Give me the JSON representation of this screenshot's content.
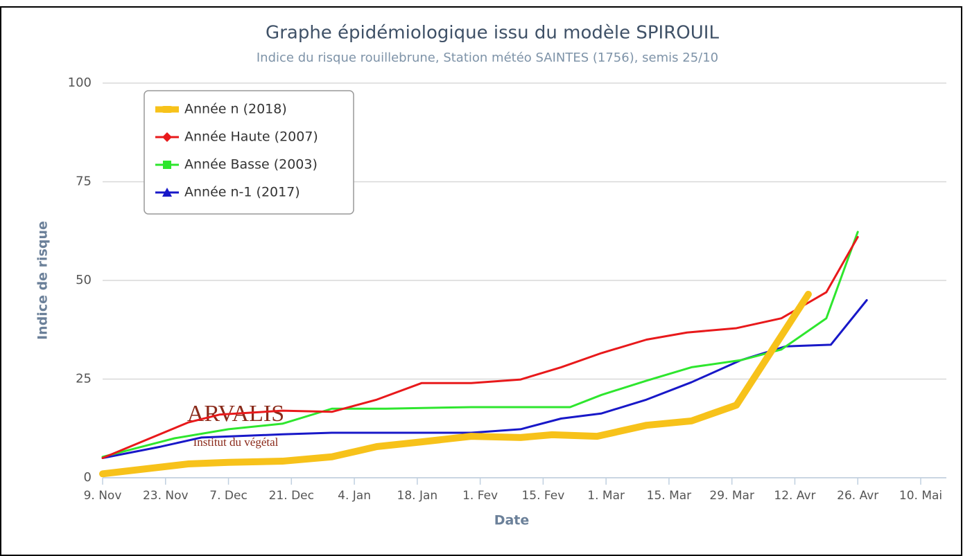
{
  "chart_data": {
    "type": "line",
    "title": "Graphe épidémiologique issu du modèle SPIROUIL",
    "subtitle": "Indice du risque rouillebrune, Station météo SAINTES (1756), semis 25/10",
    "x_label": "Date",
    "y_label": "Indice de risque",
    "logo": {
      "name": "ARVALIS",
      "tagline": "Institut du végétal"
    },
    "xlim": [
      0,
      182
    ],
    "xticks": [
      {
        "value": 0,
        "label": "9. Nov"
      },
      {
        "value": 14,
        "label": "23. Nov"
      },
      {
        "value": 28,
        "label": "7. Dec"
      },
      {
        "value": 42,
        "label": "21. Dec"
      },
      {
        "value": 56,
        "label": "4. Jan"
      },
      {
        "value": 70,
        "label": "18. Jan"
      },
      {
        "value": 84,
        "label": "1. Fev"
      },
      {
        "value": 98,
        "label": "15. Fev"
      },
      {
        "value": 112,
        "label": "1. Mar"
      },
      {
        "value": 126,
        "label": "15. Mar"
      },
      {
        "value": 140,
        "label": "29. Mar"
      },
      {
        "value": 154,
        "label": "12. Avr"
      },
      {
        "value": 168,
        "label": "26. Avr"
      },
      {
        "value": 182,
        "label": "10. Mai"
      }
    ],
    "ylim": [
      0,
      100
    ],
    "yticks": [
      0,
      25,
      50,
      75,
      100
    ],
    "grid": true,
    "legend": "top-left",
    "series": [
      {
        "name": "Année n (2018)",
        "color": "#f7c21a",
        "marker": "circle",
        "x": [
          0,
          19,
          28,
          40,
          51,
          61,
          71,
          82,
          93,
          100,
          110,
          121,
          131,
          141,
          157
        ],
        "values": [
          1,
          3.5,
          3.9,
          4.2,
          5.3,
          7.9,
          9.1,
          10.5,
          10.2,
          10.9,
          10.5,
          13.3,
          14.4,
          18.4,
          46.5
        ]
      },
      {
        "name": "Année Haute (2007)",
        "color": "#e8191b",
        "marker": "diamond",
        "x": [
          0,
          19,
          26,
          40,
          51,
          61,
          71,
          82,
          93,
          102,
          111,
          121,
          130,
          141,
          151,
          161,
          168
        ],
        "values": [
          5,
          14,
          16,
          17,
          16.7,
          19.8,
          24,
          24,
          24.9,
          28,
          31.6,
          35,
          36.8,
          37.9,
          40.4,
          47,
          61
        ]
      },
      {
        "name": "Année Basse (2003)",
        "color": "#2ee62e",
        "marker": "square",
        "x": [
          0,
          16,
          28,
          40,
          51,
          63,
          82,
          93,
          104,
          111,
          121,
          131,
          142,
          151,
          161,
          168
        ],
        "values": [
          5.3,
          10,
          12.3,
          13.7,
          17.5,
          17.5,
          17.9,
          17.9,
          17.9,
          21,
          24.6,
          28,
          29.8,
          32.5,
          40.4,
          62.3
        ]
      },
      {
        "name": "Année n-1 (2017)",
        "color": "#1818c8",
        "marker": "triangle",
        "x": [
          0,
          13,
          22,
          40,
          51,
          71,
          82,
          93,
          102,
          111,
          121,
          131,
          142,
          152,
          162,
          170
        ],
        "values": [
          5,
          7.9,
          10.2,
          11,
          11.4,
          11.4,
          11.4,
          12.3,
          15,
          16.3,
          19.8,
          24.2,
          29.8,
          33.3,
          33.7,
          45
        ]
      }
    ]
  }
}
